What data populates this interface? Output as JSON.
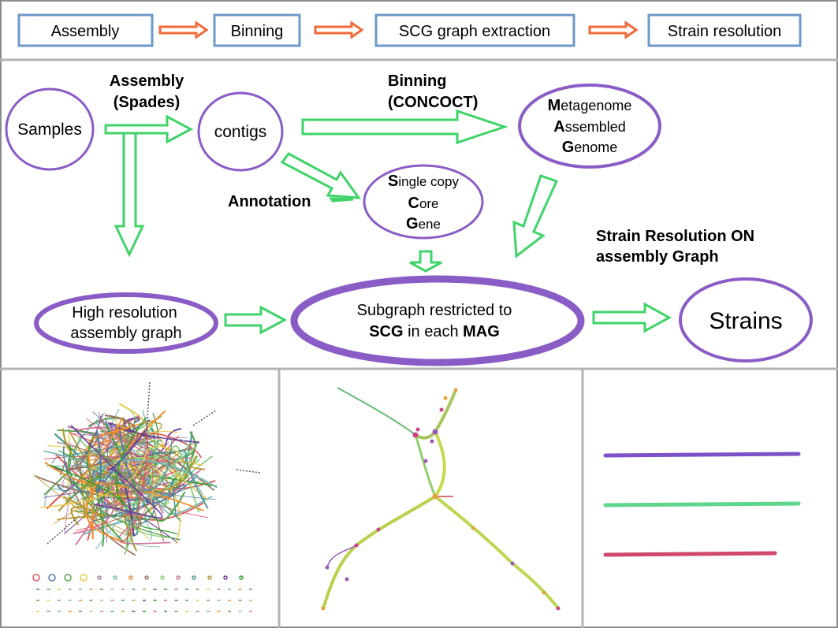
{
  "pipeline": {
    "steps": [
      "Assembly",
      "Binning",
      "SCG graph extraction",
      "Strain resolution"
    ]
  },
  "diagram": {
    "samples": "Samples",
    "contigs": "contigs",
    "assembly_label_1": "Assembly",
    "assembly_label_2": "(Spades)",
    "binning_label_1": "Binning",
    "binning_label_2": "(CONCOCT)",
    "mag": {
      "l1_initial": "M",
      "l1_rest": "etagenome",
      "l2_initial": "A",
      "l2_rest": "ssembled",
      "l3_initial": "G",
      "l3_rest": "enome"
    },
    "annotation": "Annotation",
    "scg": {
      "l1_initial": "S",
      "l1_rest": "ingle copy",
      "l2_initial": "C",
      "l2_rest": "ore",
      "l3_initial": "G",
      "l3_rest": "ene"
    },
    "strain_res_1": "Strain Resolution ON",
    "strain_res_2": "assembly Graph",
    "high_res_1": "High resolution",
    "high_res_2": "assembly graph",
    "subgraph_1": "Subgraph restricted to",
    "subgraph_2a": "SCG",
    "subgraph_2b": " in each ",
    "subgraph_2c": "MAG",
    "strains": "Strains"
  },
  "panels": {
    "strain_line_colors": [
      "#7b52c8",
      "#5fd68c",
      "#d0486e"
    ]
  },
  "colors": {
    "box_border": "#6e98c9",
    "green_arrow": "#3fd36a",
    "orange_arrow": "#f06a3a",
    "ellipse_border": "#8a5cc6"
  }
}
